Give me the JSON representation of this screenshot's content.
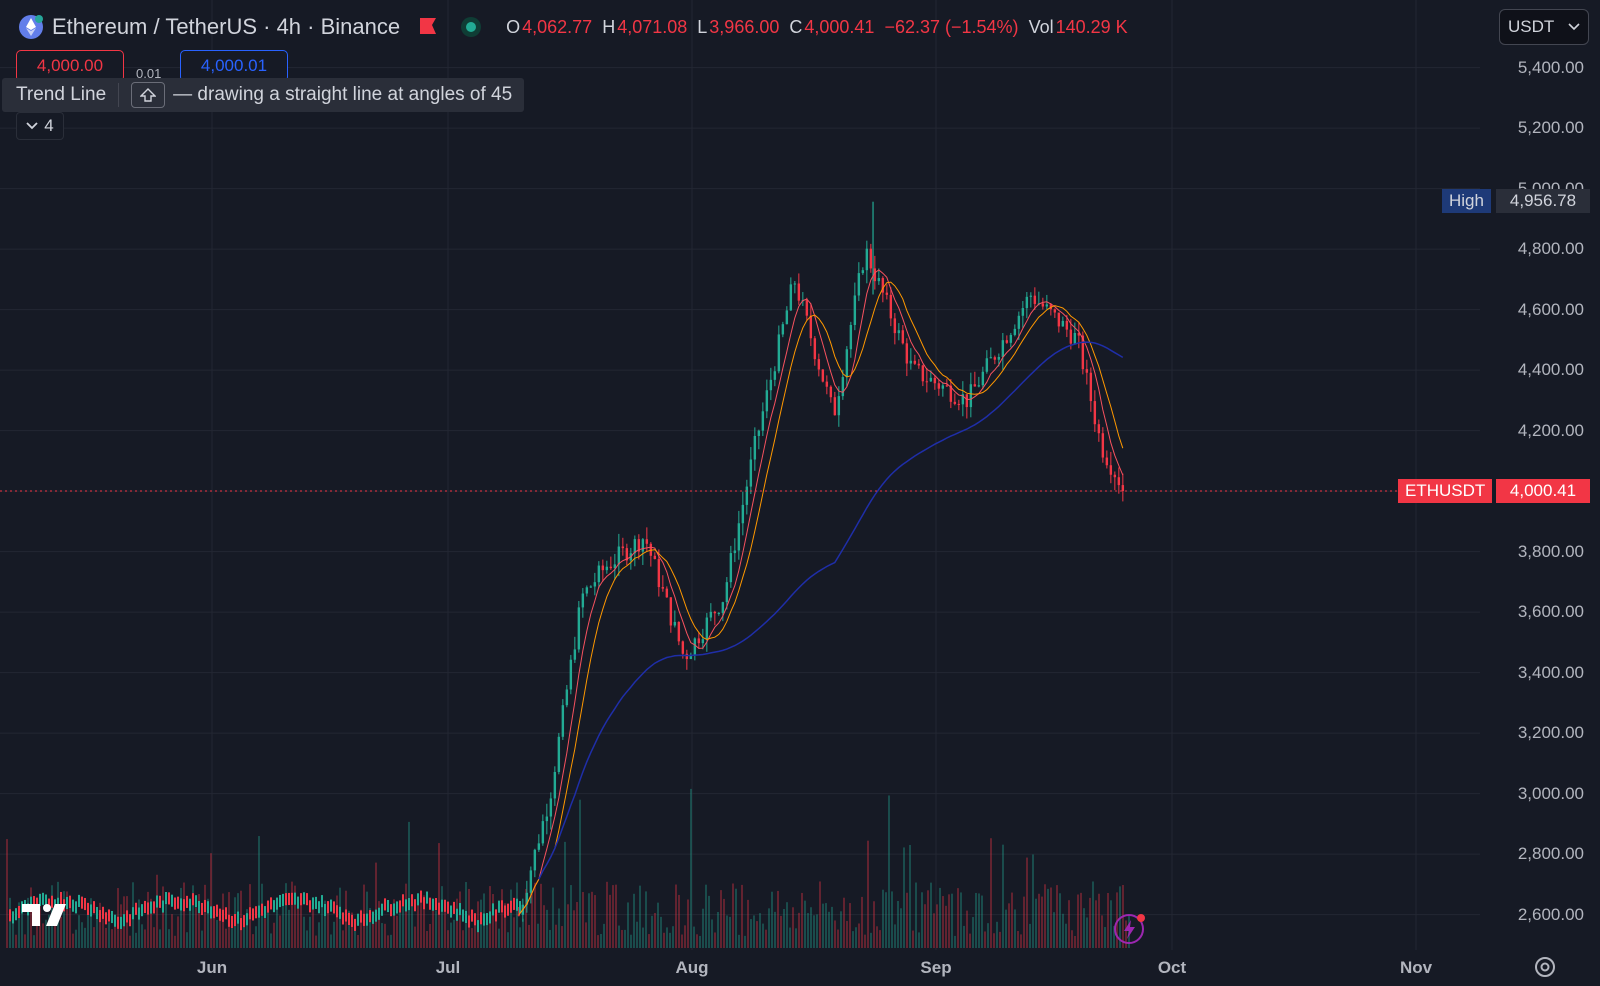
{
  "header": {
    "symbol_title": "Ethereum / TetherUS · 4h · Binance",
    "ohlc": [
      {
        "label": "O",
        "value": "4,062.77"
      },
      {
        "label": "H",
        "value": "4,071.08"
      },
      {
        "label": "L",
        "value": "3,966.00"
      },
      {
        "label": "C",
        "value": "4,000.41"
      },
      {
        "label": "",
        "value": "−62.37 (−1.54%)"
      },
      {
        "label": "Vol",
        "value": "140.29 K"
      }
    ],
    "currency_select": "USDT"
  },
  "trade": {
    "sell_price": "4,000.00",
    "spread": "0.01",
    "buy_price": "4,000.01"
  },
  "tooltip": {
    "tool_name": "Trend Line",
    "hint": "— drawing a straight line at angles of 45"
  },
  "indicators_toggle": {
    "count": "4"
  },
  "price_axis": {
    "labels": [
      "5,400.00",
      "5,200.00",
      "5,000.00",
      "4,800.00",
      "4,600.00",
      "4,400.00",
      "4,200.00",
      "3,800.00",
      "3,600.00",
      "3,400.00",
      "3,200.00",
      "3,000.00",
      "2,800.00",
      "2,600.00"
    ]
  },
  "high_marker": {
    "label": "High",
    "value": "4,956.78"
  },
  "last_price_marker": {
    "label": "ETHUSDT",
    "value": "4,000.41"
  },
  "time_axis": {
    "labels": [
      "Jun",
      "Jul",
      "Aug",
      "Sep",
      "Oct",
      "Nov"
    ]
  },
  "colors": {
    "background": "#161a25",
    "up": "#22ab94",
    "down": "#f23645",
    "ma_fast": "#f7525f",
    "ma_slow": "#ff9800",
    "ma_long": "#1f2ea8",
    "high_tag": "#1e3a78"
  },
  "chart_data": {
    "type": "candlestick",
    "pair": "ETHUSDT",
    "interval": "4h",
    "ylim": [
      2500,
      5450
    ],
    "last_price": 4000.41,
    "high": 4956.78,
    "x": [
      "Jun",
      "Jul",
      "Aug",
      "Sep"
    ],
    "close_path": [
      {
        "t": "Jul 10",
        "v": 2600
      },
      {
        "t": "Jul 14",
        "v": 3000
      },
      {
        "t": "Jul 18",
        "v": 3650
      },
      {
        "t": "Jul 21",
        "v": 3750
      },
      {
        "t": "Jul 26",
        "v": 3850
      },
      {
        "t": "Jul 31",
        "v": 3450
      },
      {
        "t": "Aug 5",
        "v": 3650
      },
      {
        "t": "Aug 9",
        "v": 4150
      },
      {
        "t": "Aug 14",
        "v": 4700
      },
      {
        "t": "Aug 19",
        "v": 4250
      },
      {
        "t": "Aug 23",
        "v": 4800
      },
      {
        "t": "Aug 29",
        "v": 4400
      },
      {
        "t": "Sep 5",
        "v": 4300
      },
      {
        "t": "Sep 13",
        "v": 4650
      },
      {
        "t": "Sep 19",
        "v": 4500
      },
      {
        "t": "Sep 22",
        "v": 4150
      },
      {
        "t": "Sep 25",
        "v": 4000.41
      }
    ]
  }
}
